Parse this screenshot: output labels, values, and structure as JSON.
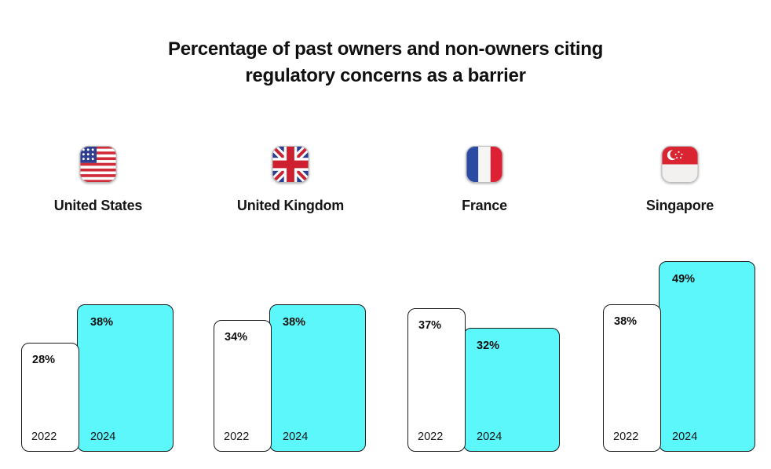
{
  "title": {
    "line1": "Percentage of past owners and non-owners citing",
    "line2": "regulatory concerns as a barrier"
  },
  "chart_data": {
    "type": "bar",
    "title": "Percentage of past owners and non-owners citing regulatory concerns as a barrier",
    "categories": [
      "United States",
      "United Kingdom",
      "France",
      "Singapore"
    ],
    "series": [
      {
        "name": "2022",
        "values": [
          28,
          34,
          37,
          38
        ]
      },
      {
        "name": "2024",
        "values": [
          38,
          38,
          32,
          49
        ]
      }
    ],
    "value_suffix": "%",
    "ylim": [
      0,
      55
    ],
    "grid": false,
    "legend_position": "none",
    "value_labels": "inside-top-left",
    "series_labels": "inside-bottom-left"
  },
  "colors": {
    "bar_2022_fill": "#ffffff",
    "bar_2024_fill": "#5BF7FB",
    "bar_border": "#1b1b1b",
    "text": "#101010"
  },
  "groups": [
    {
      "country": "United States",
      "flag": "us-flag-icon",
      "bars": [
        {
          "year": "2022",
          "value": 28,
          "label": "28%"
        },
        {
          "year": "2024",
          "value": 38,
          "label": "38%"
        }
      ]
    },
    {
      "country": "United Kingdom",
      "flag": "uk-flag-icon",
      "bars": [
        {
          "year": "2022",
          "value": 34,
          "label": "34%"
        },
        {
          "year": "2024",
          "value": 38,
          "label": "38%"
        }
      ]
    },
    {
      "country": "France",
      "flag": "france-flag-icon",
      "bars": [
        {
          "year": "2022",
          "value": 37,
          "label": "37%"
        },
        {
          "year": "2024",
          "value": 32,
          "label": "32%"
        }
      ]
    },
    {
      "country": "Singapore",
      "flag": "singapore-flag-icon",
      "bars": [
        {
          "year": "2022",
          "value": 38,
          "label": "38%"
        },
        {
          "year": "2024",
          "value": 49,
          "label": "49%"
        }
      ]
    }
  ]
}
